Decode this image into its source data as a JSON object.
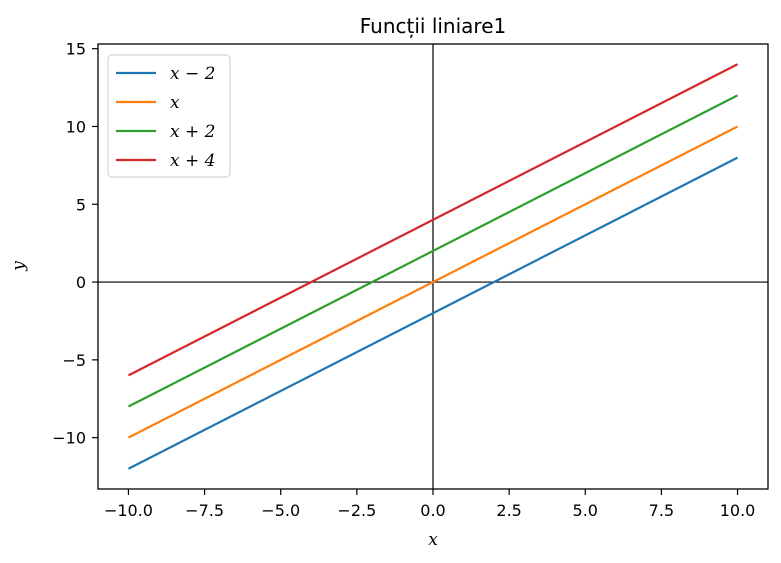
{
  "chart_data": {
    "type": "line",
    "title": "Funcții liniare1",
    "xlabel": "x",
    "ylabel": "y",
    "xlim": [
      -11,
      11
    ],
    "ylim": [
      -13.3,
      15.3
    ],
    "xticks": [
      -10.0,
      -7.5,
      -5.0,
      -2.5,
      0.0,
      2.5,
      5.0,
      7.5,
      10.0
    ],
    "xtick_labels": [
      "−10.0",
      "−7.5",
      "−5.0",
      "−2.5",
      "0.0",
      "2.5",
      "5.0",
      "7.5",
      "10.0"
    ],
    "yticks": [
      -10,
      -5,
      0,
      5,
      10,
      15
    ],
    "ytick_labels": [
      "−10",
      "−5",
      "0",
      "5",
      "10",
      "15"
    ],
    "grid": false,
    "legend_position": "top-left",
    "reference_lines": {
      "x": 0,
      "y": 0,
      "color": "#000000"
    },
    "series": [
      {
        "name": "x − 2",
        "color": "#1f77b4",
        "x": [
          -10,
          10
        ],
        "y": [
          -12,
          8
        ]
      },
      {
        "name": "x",
        "color": "#ff7f0e",
        "x": [
          -10,
          10
        ],
        "y": [
          -10,
          10
        ]
      },
      {
        "name": "x + 2",
        "color": "#2ca02c",
        "x": [
          -10,
          10
        ],
        "y": [
          -8,
          12
        ]
      },
      {
        "name": "x + 4",
        "color": "#d62728",
        "x": [
          -10,
          10
        ],
        "y": [
          -6,
          14
        ]
      }
    ]
  }
}
